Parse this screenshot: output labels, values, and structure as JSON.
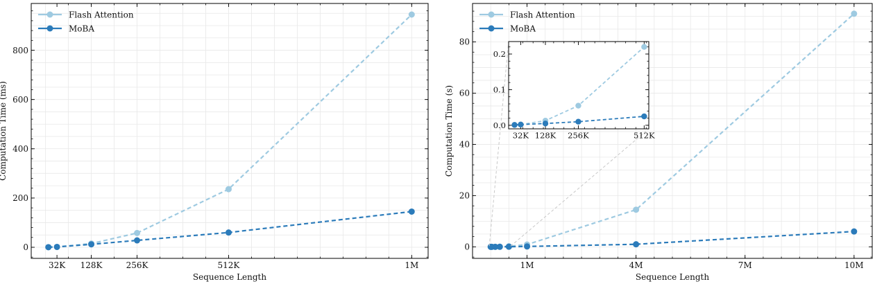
{
  "chart_data": [
    {
      "type": "line",
      "xlabel": "Sequence Length",
      "ylabel": "Computation Time (ms)",
      "x_ticks": [
        {
          "value": 32,
          "label": "32K"
        },
        {
          "value": 128,
          "label": "128K"
        },
        {
          "value": 256,
          "label": "256K"
        },
        {
          "value": 512,
          "label": "512K"
        },
        {
          "value": 1024,
          "label": "1M"
        }
      ],
      "y_ticks": [
        0,
        200,
        400,
        600,
        800
      ],
      "xlim": [
        -40,
        1070
      ],
      "ylim": [
        -45,
        990
      ],
      "grid": true,
      "legend": "top-left",
      "series": [
        {
          "name": "Flash Attention",
          "color": "#9ecae1",
          "x": [
            8,
            32,
            128,
            256,
            512,
            1024
          ],
          "y": [
            0.5,
            1.5,
            15,
            58,
            236,
            945
          ]
        },
        {
          "name": "MoBA",
          "color": "#2b7bba",
          "x": [
            8,
            32,
            128,
            256,
            512,
            1024
          ],
          "y": [
            0.5,
            1.5,
            12,
            28,
            60,
            145
          ]
        }
      ]
    },
    {
      "type": "line",
      "xlabel": "Sequence Length",
      "ylabel": "Computation Time (s)",
      "x_ticks": [
        {
          "value": 1,
          "label": "1M"
        },
        {
          "value": 4,
          "label": "4M"
        },
        {
          "value": 7,
          "label": "7M"
        },
        {
          "value": 10,
          "label": "10M"
        }
      ],
      "y_ticks": [
        0,
        20,
        40,
        60,
        80
      ],
      "xlim": [
        -0.5,
        10.5
      ],
      "ylim": [
        -4.5,
        95
      ],
      "grid": true,
      "legend": "top-left",
      "series": [
        {
          "name": "Flash Attention",
          "color": "#9ecae1",
          "x": [
            0,
            0.03,
            0.125,
            0.25,
            0.5,
            1,
            4,
            10
          ],
          "y": [
            0,
            0.001,
            0.015,
            0.05,
            0.22,
            0.9,
            14.5,
            91
          ]
        },
        {
          "name": "MoBA",
          "color": "#2b7bba",
          "x": [
            0,
            0.03,
            0.125,
            0.25,
            0.5,
            1,
            4,
            10
          ],
          "y": [
            0,
            0.001,
            0.01,
            0.02,
            0.05,
            0.15,
            1,
            6
          ]
        }
      ],
      "inset": {
        "x_ticks": [
          {
            "value": 32,
            "label": "32K"
          },
          {
            "value": 128,
            "label": "128K"
          },
          {
            "value": 256,
            "label": "256K"
          },
          {
            "value": 512,
            "label": "512K"
          }
        ],
        "y_ticks": [
          {
            "value": 0,
            "label": "0.0"
          },
          {
            "value": 0.1,
            "label": "0.1"
          },
          {
            "value": 0.2,
            "label": "0.2"
          }
        ],
        "xlim": [
          -15,
          530
        ],
        "ylim": [
          -0.01,
          0.235
        ],
        "series": [
          {
            "name": "Flash Attention",
            "color": "#9ecae1",
            "x": [
              8,
              32,
              128,
              256,
              512
            ],
            "y": [
              0.001,
              0.002,
              0.013,
              0.055,
              0.22
            ]
          },
          {
            "name": "MoBA",
            "color": "#2b7bba",
            "x": [
              8,
              32,
              128,
              256,
              512
            ],
            "y": [
              0.001,
              0.002,
              0.005,
              0.01,
              0.025
            ]
          }
        ]
      }
    }
  ]
}
